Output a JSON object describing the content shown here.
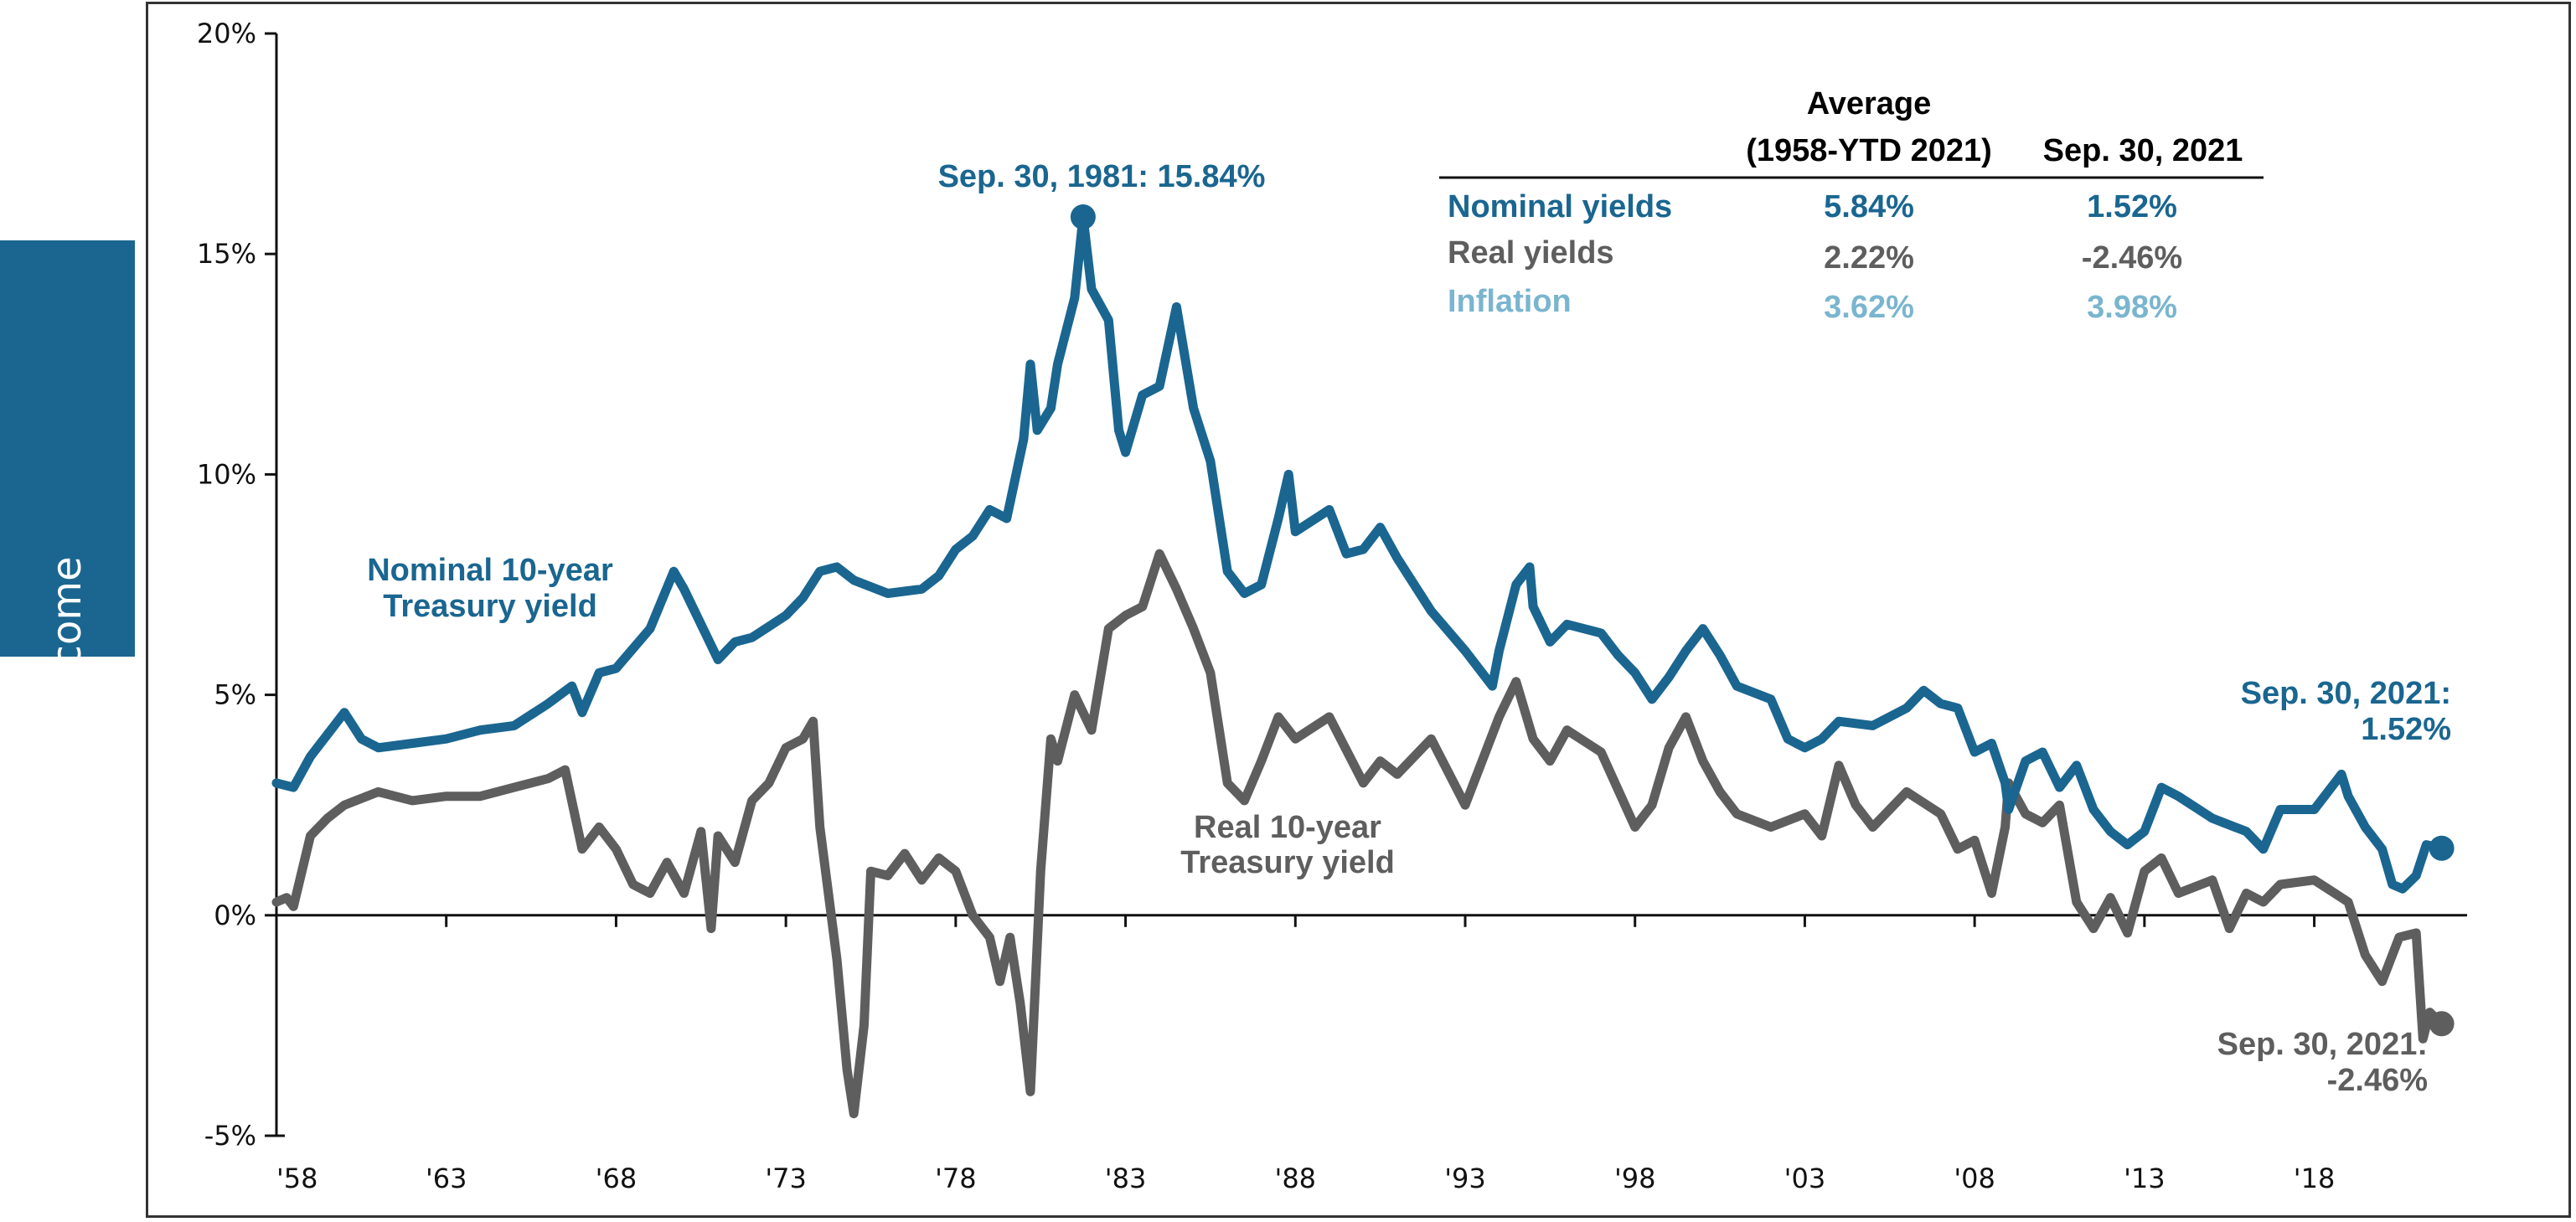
{
  "sidebar": {
    "label": "Fixed income"
  },
  "colors": {
    "nominal": "#1a6690",
    "real": "#5e5e5e",
    "inflation": "#7ab5cf",
    "axis": "#111111"
  },
  "chart_data": {
    "type": "line",
    "title": "",
    "xlabel": "",
    "ylabel": "",
    "xlim": [
      1958,
      2022.5
    ],
    "ylim": [
      -5,
      20
    ],
    "grid": false,
    "y_ticks": [
      -5,
      0,
      5,
      10,
      15,
      20
    ],
    "y_tick_labels": [
      "-5%",
      "0%",
      "5%",
      "10%",
      "15%",
      "20%"
    ],
    "x_ticks": [
      1958,
      1963,
      1968,
      1973,
      1978,
      1983,
      1988,
      1993,
      1998,
      2003,
      2008,
      2013,
      2018
    ],
    "x_tick_labels": [
      "'58",
      "'63",
      "'68",
      "'73",
      "'78",
      "'83",
      "'88",
      "'93",
      "'98",
      "'03",
      "'08",
      "'13",
      "'18"
    ],
    "series": [
      {
        "name": "Nominal 10-year Treasury yield",
        "color": "#1a6690",
        "x": [
          1958.0,
          1958.5,
          1959.0,
          1959.5,
          1960.0,
          1960.5,
          1961.0,
          1962.0,
          1963.0,
          1964.0,
          1965.0,
          1966.0,
          1966.7,
          1967.0,
          1967.5,
          1968.0,
          1969.0,
          1969.7,
          1970.0,
          1970.5,
          1971.0,
          1971.5,
          1972.0,
          1973.0,
          1973.5,
          1974.0,
          1974.5,
          1975.0,
          1976.0,
          1977.0,
          1977.5,
          1978.0,
          1978.5,
          1979.0,
          1979.5,
          1980.0,
          1980.2,
          1980.4,
          1980.8,
          1981.0,
          1981.5,
          1981.75,
          1982.0,
          1982.5,
          1982.8,
          1983.0,
          1983.5,
          1984.0,
          1984.5,
          1985.0,
          1985.5,
          1986.0,
          1986.5,
          1987.0,
          1987.5,
          1987.8,
          1988.0,
          1989.0,
          1989.5,
          1990.0,
          1990.5,
          1991.0,
          1992.0,
          1993.0,
          1993.8,
          1994.0,
          1994.5,
          1994.9,
          1995.0,
          1995.5,
          1996.0,
          1997.0,
          1997.5,
          1998.0,
          1998.5,
          1999.0,
          1999.5,
          2000.0,
          2000.5,
          2001.0,
          2002.0,
          2002.5,
          2003.0,
          2003.5,
          2004.0,
          2005.0,
          2006.0,
          2006.5,
          2007.0,
          2007.5,
          2008.0,
          2008.5,
          2008.9,
          2009.0,
          2009.5,
          2010.0,
          2010.5,
          2011.0,
          2011.5,
          2012.0,
          2012.5,
          2013.0,
          2013.5,
          2014.0,
          2015.0,
          2016.0,
          2016.5,
          2017.0,
          2018.0,
          2018.8,
          2019.0,
          2019.5,
          2020.0,
          2020.3,
          2020.6,
          2021.0,
          2021.3,
          2021.75
        ],
        "y": [
          3.0,
          2.9,
          3.6,
          4.1,
          4.6,
          4.0,
          3.8,
          3.9,
          4.0,
          4.2,
          4.3,
          4.8,
          5.2,
          4.6,
          5.5,
          5.6,
          6.5,
          7.8,
          7.4,
          6.6,
          5.8,
          6.2,
          6.3,
          6.8,
          7.2,
          7.8,
          7.9,
          7.6,
          7.3,
          7.4,
          7.7,
          8.3,
          8.6,
          9.2,
          9.0,
          10.8,
          12.5,
          11.0,
          11.5,
          12.5,
          14.0,
          15.84,
          14.2,
          13.5,
          11.0,
          10.5,
          11.8,
          12.0,
          13.8,
          11.5,
          10.3,
          7.8,
          7.3,
          7.5,
          9.0,
          10.0,
          8.7,
          9.2,
          8.2,
          8.3,
          8.8,
          8.1,
          6.9,
          6.0,
          5.2,
          6.0,
          7.5,
          7.9,
          7.0,
          6.2,
          6.6,
          6.4,
          5.9,
          5.5,
          4.9,
          5.4,
          6.0,
          6.5,
          5.9,
          5.2,
          4.9,
          4.0,
          3.8,
          4.0,
          4.4,
          4.3,
          4.7,
          5.1,
          4.8,
          4.7,
          3.7,
          3.9,
          3.0,
          2.4,
          3.5,
          3.7,
          2.9,
          3.4,
          2.4,
          1.9,
          1.6,
          1.9,
          2.9,
          2.7,
          2.2,
          1.9,
          1.5,
          2.4,
          2.4,
          3.2,
          2.7,
          2.0,
          1.5,
          0.7,
          0.6,
          0.9,
          1.6,
          1.52
        ]
      },
      {
        "name": "Real 10-year Treasury yield",
        "color": "#5e5e5e",
        "x": [
          1958.0,
          1958.3,
          1958.5,
          1959.0,
          1959.5,
          1960.0,
          1961.0,
          1962.0,
          1963.0,
          1964.0,
          1965.0,
          1966.0,
          1966.5,
          1967.0,
          1967.5,
          1968.0,
          1968.5,
          1969.0,
          1969.5,
          1970.0,
          1970.5,
          1970.8,
          1971.0,
          1971.5,
          1972.0,
          1972.5,
          1973.0,
          1973.5,
          1973.8,
          1974.0,
          1974.5,
          1974.8,
          1975.0,
          1975.3,
          1975.5,
          1976.0,
          1976.5,
          1977.0,
          1977.5,
          1978.0,
          1978.5,
          1979.0,
          1979.3,
          1979.6,
          1979.9,
          1980.2,
          1980.5,
          1980.8,
          1981.0,
          1981.5,
          1982.0,
          1982.5,
          1983.0,
          1983.5,
          1984.0,
          1984.5,
          1985.0,
          1985.5,
          1986.0,
          1986.5,
          1987.0,
          1987.5,
          1988.0,
          1989.0,
          1990.0,
          1990.5,
          1991.0,
          1992.0,
          1993.0,
          1994.0,
          1994.5,
          1995.0,
          1995.5,
          1996.0,
          1997.0,
          1998.0,
          1998.5,
          1999.0,
          1999.5,
          2000.0,
          2000.5,
          2001.0,
          2002.0,
          2003.0,
          2003.5,
          2004.0,
          2004.5,
          2005.0,
          2006.0,
          2007.0,
          2007.5,
          2008.0,
          2008.5,
          2008.9,
          2009.0,
          2009.5,
          2010.0,
          2010.5,
          2011.0,
          2011.5,
          2012.0,
          2012.5,
          2013.0,
          2013.5,
          2014.0,
          2015.0,
          2015.5,
          2016.0,
          2016.5,
          2017.0,
          2018.0,
          2019.0,
          2019.5,
          2020.0,
          2020.5,
          2021.0,
          2021.2,
          2021.4,
          2021.75
        ],
        "y": [
          0.3,
          0.4,
          0.2,
          1.8,
          2.2,
          2.5,
          2.8,
          2.6,
          2.7,
          2.7,
          2.9,
          3.1,
          3.3,
          1.5,
          2.0,
          1.5,
          0.7,
          0.5,
          1.2,
          0.5,
          1.9,
          -0.3,
          1.8,
          1.2,
          2.6,
          3.0,
          3.8,
          4.0,
          4.4,
          2.0,
          -1.0,
          -3.5,
          -4.5,
          -2.5,
          1.0,
          0.9,
          1.4,
          0.8,
          1.3,
          1.0,
          0.0,
          -0.5,
          -1.5,
          -0.5,
          -2.0,
          -4.0,
          1.0,
          4.0,
          3.5,
          5.0,
          4.2,
          6.5,
          6.8,
          7.0,
          8.2,
          7.4,
          6.5,
          5.5,
          3.0,
          2.6,
          3.5,
          4.5,
          4.0,
          4.5,
          3.0,
          3.5,
          3.2,
          4.0,
          2.5,
          4.5,
          5.3,
          4.0,
          3.5,
          4.2,
          3.7,
          2.0,
          2.5,
          3.8,
          4.5,
          3.5,
          2.8,
          2.3,
          2.0,
          2.3,
          1.8,
          3.4,
          2.5,
          2.0,
          2.8,
          2.3,
          1.5,
          1.7,
          0.5,
          2.0,
          3.0,
          2.3,
          2.1,
          2.5,
          0.3,
          -0.3,
          0.4,
          -0.4,
          1.0,
          1.3,
          0.5,
          0.8,
          -0.3,
          0.5,
          0.3,
          0.7,
          0.8,
          0.3,
          -0.9,
          -1.5,
          -0.5,
          -0.4,
          -2.8,
          -2.2,
          -2.46
        ]
      }
    ],
    "peak_marker": {
      "x": 1981.75,
      "y": 15.84
    },
    "annotations": {
      "peak": "Sep. 30, 1981: 15.84%",
      "nominal_label": [
        "Nominal 10-year",
        "Treasury yield"
      ],
      "real_label": [
        "Real 10-year",
        "Treasury yield"
      ],
      "nominal_end": [
        "Sep. 30, 2021:",
        "1.52%"
      ],
      "real_end": [
        "Sep. 30, 2021:",
        "-2.46%"
      ]
    },
    "table": {
      "header_avg_1": "Average",
      "header_avg_2": "(1958-YTD 2021)",
      "header_current": "Sep. 30, 2021",
      "rows": [
        {
          "label": "Nominal yields",
          "average": "5.84%",
          "current": "1.52%",
          "color": "#1a6690"
        },
        {
          "label": "Real yields",
          "average": "2.22%",
          "current": "-2.46%",
          "color": "#5e5e5e"
        },
        {
          "label": "Inflation",
          "average": "3.62%",
          "current": "3.98%",
          "color": "#7ab5cf"
        }
      ]
    }
  }
}
